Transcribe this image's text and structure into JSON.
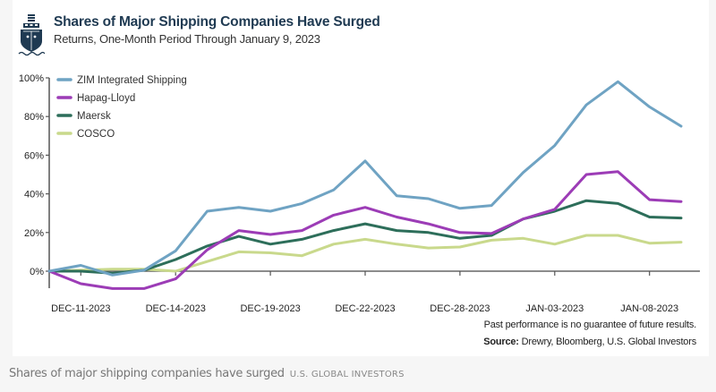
{
  "header": {
    "title": "Shares of Major Shipping Companies Have Surged",
    "subtitle": "Returns, One-Month Period Through January 9, 2023",
    "icon": "ship-icon"
  },
  "footer": {
    "disclaimer": "Past performance is no guarantee of future results.",
    "source_label": "Source:",
    "source_text": " Drewry, Bloomberg, U.S. Global Investors"
  },
  "caption": {
    "text": "Shares of major shipping companies have surged",
    "brand": "U.S. Global Investors"
  },
  "chart_data": {
    "type": "line",
    "title": "Shares of Major Shipping Companies Have Surged",
    "subtitle": "Returns, One-Month Period Through January 9, 2023",
    "xlabel": "",
    "ylabel": "",
    "ylim": [
      -15,
      100
    ],
    "yticks": [
      0,
      20,
      40,
      60,
      80,
      100
    ],
    "ytick_labels": [
      "0%",
      "20%",
      "40%",
      "60%",
      "80%",
      "100%"
    ],
    "x_count": 21,
    "xticks": [
      {
        "index": 1,
        "label": "DEC-11-2023"
      },
      {
        "index": 4,
        "label": "DEC-14-2023"
      },
      {
        "index": 7,
        "label": "DEC-19-2023"
      },
      {
        "index": 10,
        "label": "DEC-22-2023"
      },
      {
        "index": 13,
        "label": "DEC-28-2023"
      },
      {
        "index": 16,
        "label": "JAN-03-2023"
      },
      {
        "index": 19,
        "label": "JAN-08-2023"
      }
    ],
    "grid": false,
    "legend_position": "top-left",
    "series": [
      {
        "name": "ZIM Integrated Shipping",
        "color": "#6fa3c3",
        "values": [
          0,
          3,
          -2,
          0.5,
          10.5,
          31,
          33,
          31,
          35,
          42,
          57,
          39,
          37.5,
          32.5,
          34,
          51,
          65,
          86,
          98,
          85,
          75
        ]
      },
      {
        "name": "Hapag-Lloyd",
        "color": "#9c3cb6",
        "values": [
          0,
          -6.5,
          -9,
          -9,
          -4,
          11,
          21,
          19,
          21,
          29,
          33,
          28,
          24.5,
          20,
          19.5,
          27,
          32,
          50,
          51.5,
          37,
          36
        ]
      },
      {
        "name": "Maersk",
        "color": "#2d6e5a",
        "values": [
          0,
          0,
          -1,
          0.5,
          6,
          13,
          18,
          14,
          16.5,
          21,
          24.5,
          21,
          20,
          17,
          18.5,
          27,
          31,
          36.5,
          35,
          28,
          27.5
        ]
      },
      {
        "name": "COSCO",
        "color": "#c9d98c",
        "values": [
          0,
          0.5,
          1,
          1,
          0,
          5,
          10,
          9.5,
          8,
          14,
          16.5,
          14,
          12,
          12.5,
          16,
          17,
          14,
          18.5,
          18.5,
          14.5,
          15
        ]
      }
    ]
  }
}
